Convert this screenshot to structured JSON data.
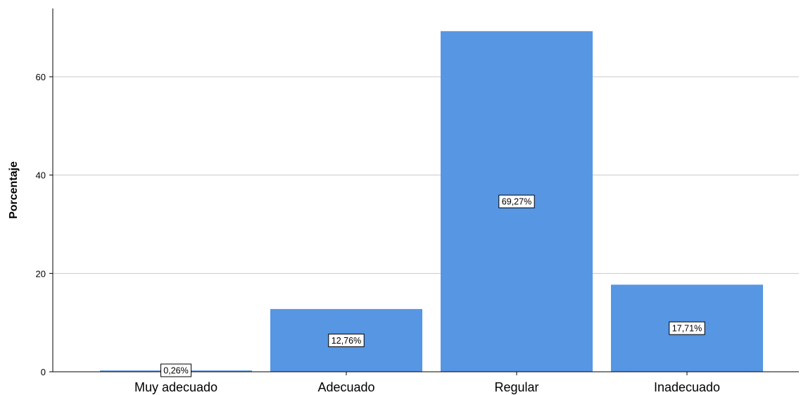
{
  "chart_data": {
    "type": "bar",
    "title": "",
    "xlabel": "",
    "ylabel": "Porcentaje",
    "categories": [
      "Muy adecuado",
      "Adecuado",
      "Regular",
      "Inadecuado"
    ],
    "values": [
      0.26,
      12.76,
      69.27,
      17.71
    ],
    "data_labels": [
      "0,26%",
      "12,76%",
      "69,27%",
      "17,71%"
    ],
    "yticks": [
      0,
      20,
      40,
      60
    ],
    "ytick_labels": [
      "0",
      "20",
      "40",
      "60"
    ],
    "ylim": [
      0,
      74
    ],
    "grid": "horizontal",
    "bar_color": "#5696E3",
    "grid_color": "#C8C8C8"
  }
}
